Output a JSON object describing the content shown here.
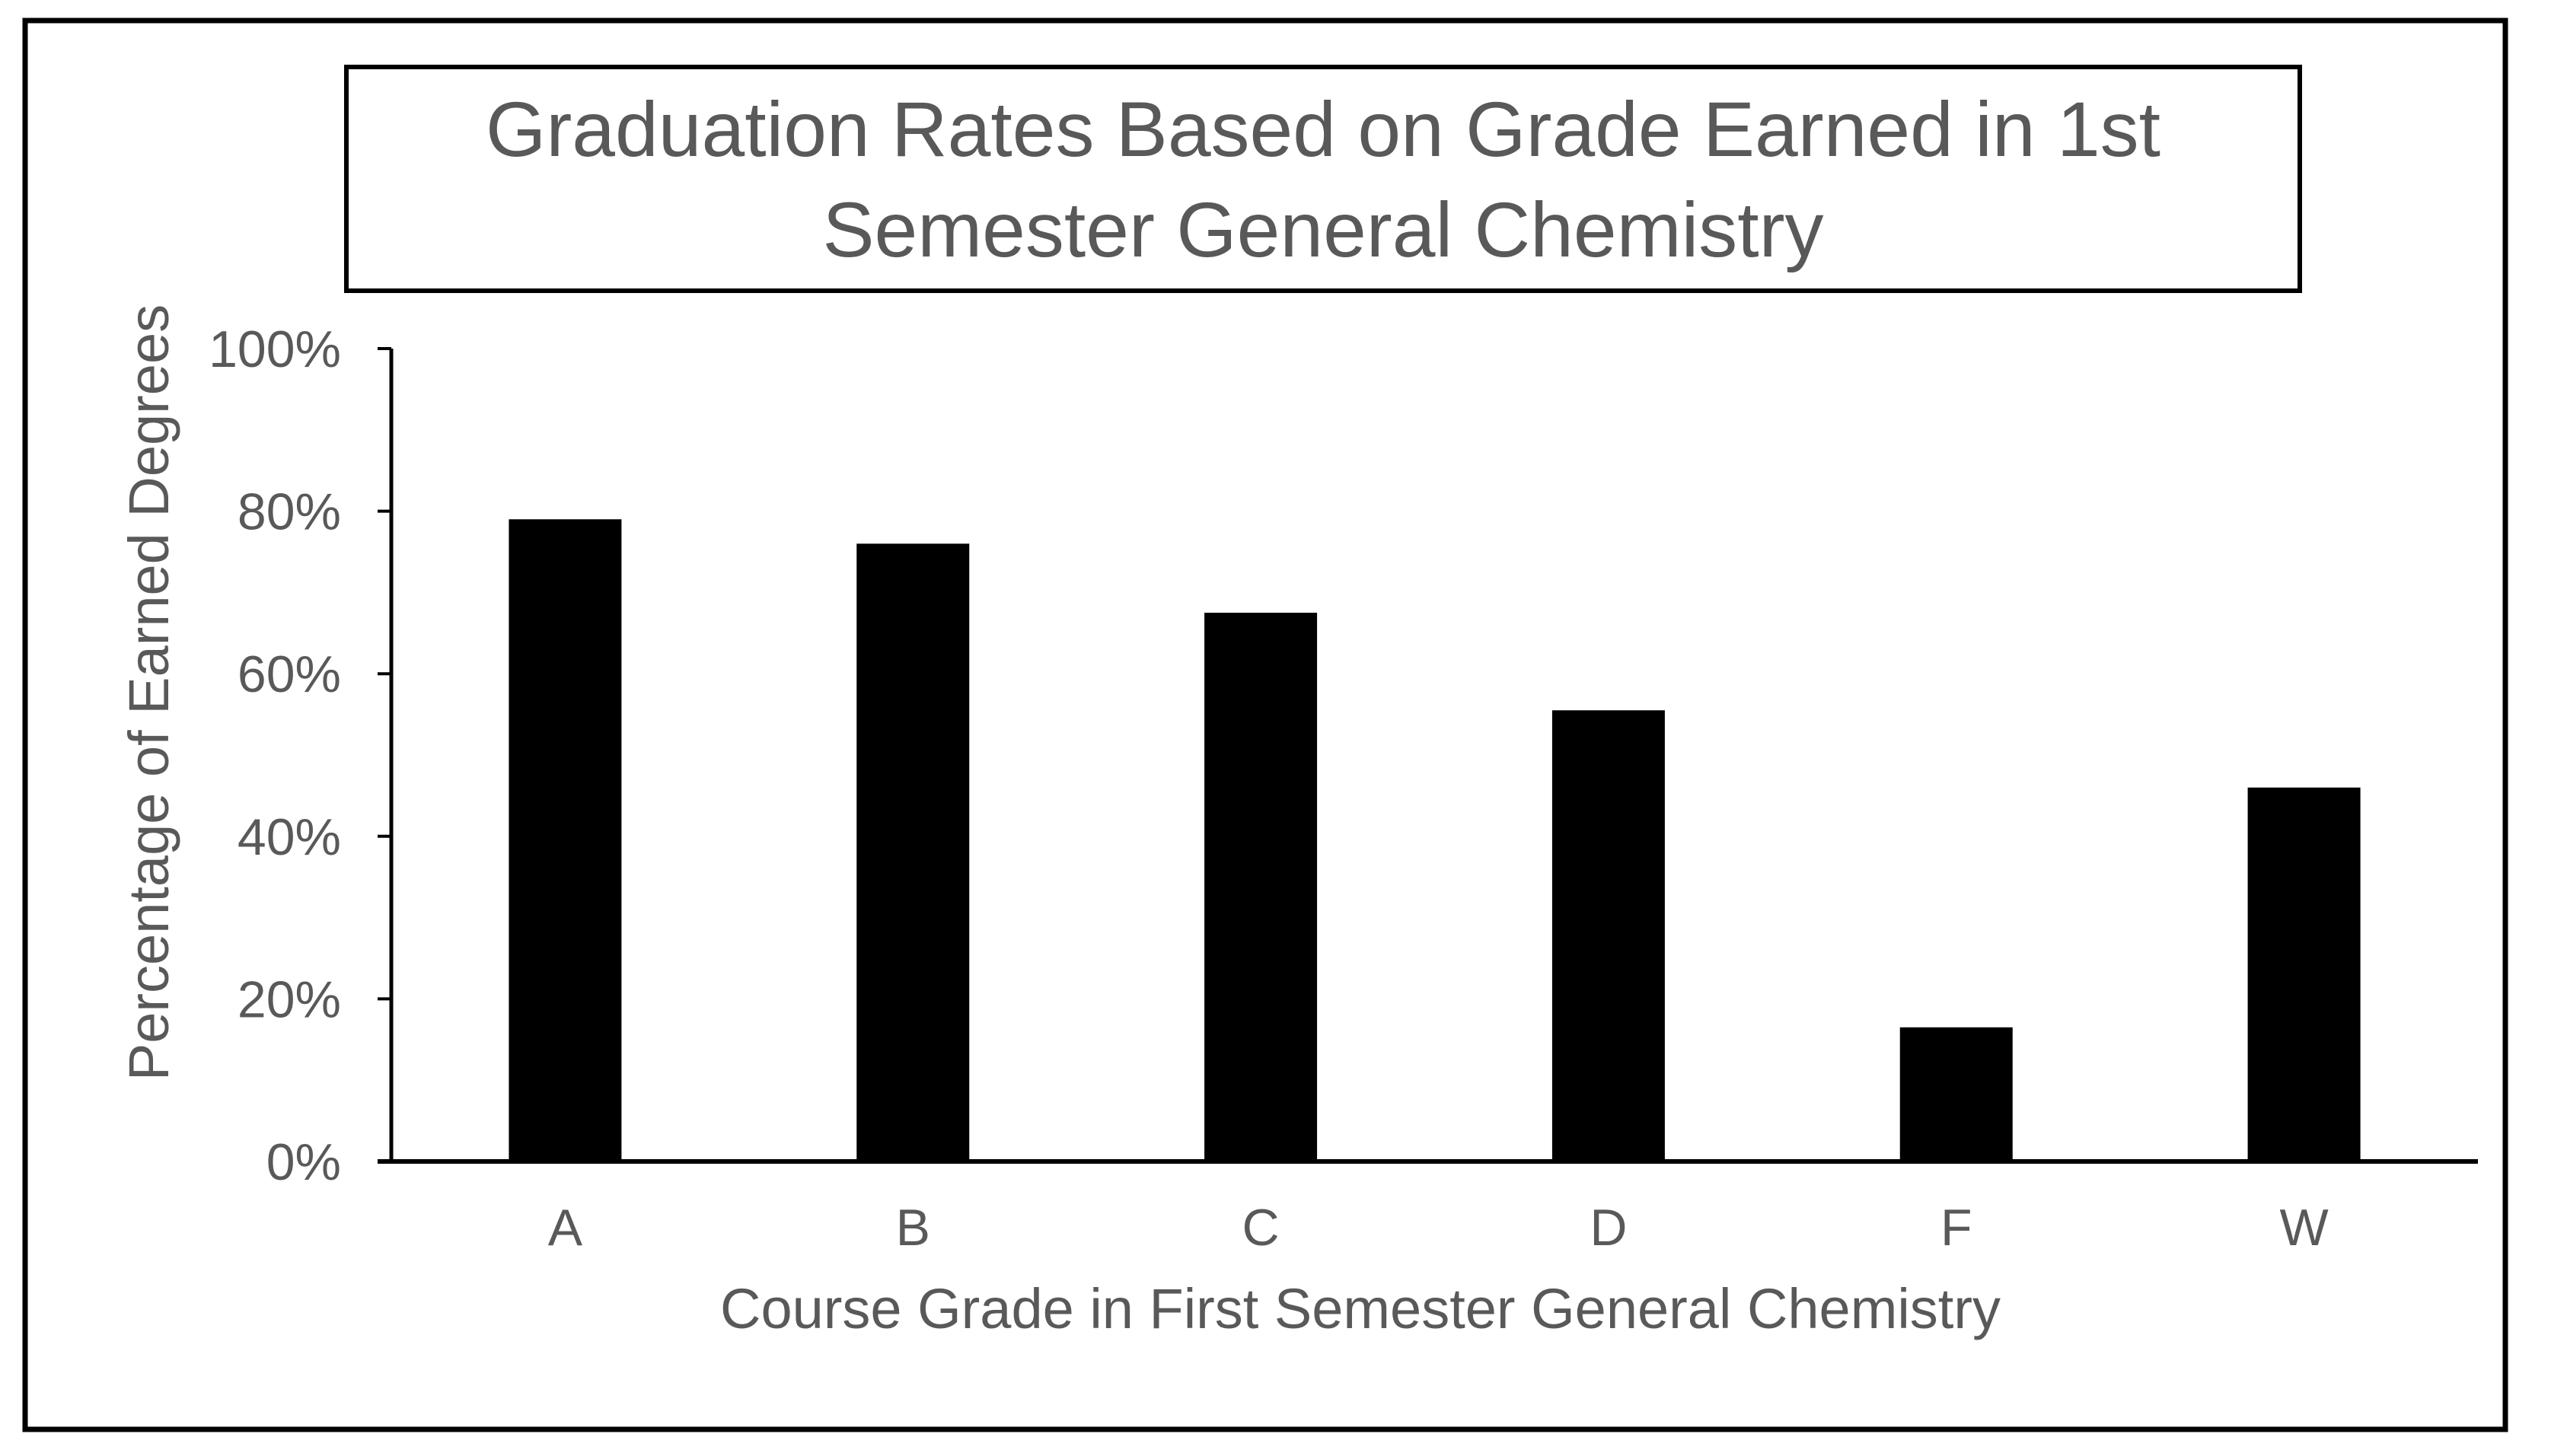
{
  "chart_data": {
    "type": "bar",
    "title_lines": [
      "Graduation Rates Based on Grade Earned in 1st",
      "Semester General Chemistry"
    ],
    "xlabel": "Course Grade in First Semester General Chemistry",
    "ylabel": "Percentage of Earned Degrees",
    "categories": [
      "A",
      "B",
      "C",
      "D",
      "F",
      "W"
    ],
    "values": [
      79,
      76,
      67.5,
      55.5,
      16.5,
      46
    ],
    "ylim": [
      0,
      100
    ],
    "yticks": [
      {
        "value": 0,
        "label": "0%"
      },
      {
        "value": 20,
        "label": "20%"
      },
      {
        "value": 40,
        "label": "40%"
      },
      {
        "value": 60,
        "label": "60%"
      },
      {
        "value": 80,
        "label": "80%"
      },
      {
        "value": 100,
        "label": "100%"
      }
    ],
    "grid": false,
    "legend": "none",
    "bar_color": "#000000",
    "text_color": "#595959",
    "axis_color": "#000000"
  }
}
